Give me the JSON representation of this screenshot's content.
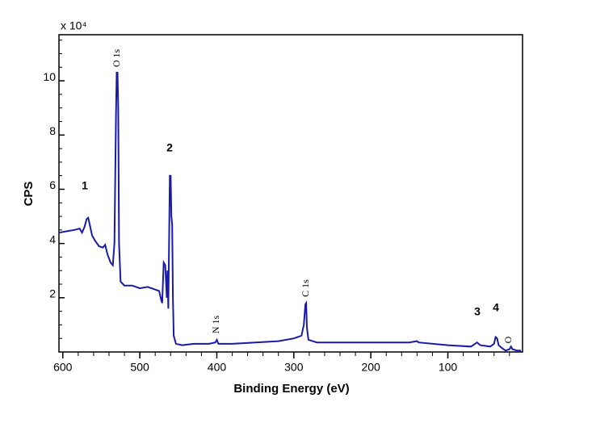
{
  "chart_data": {
    "type": "line",
    "x_label": "Binding Energy (eV)",
    "y_label": "CPS",
    "y_multiplier": "x 10⁴",
    "xlim": [
      605,
      3
    ],
    "ylim": [
      0,
      11.7
    ],
    "xticks": [
      600,
      500,
      400,
      300,
      200,
      100
    ],
    "yticks": [
      2,
      4,
      6,
      8,
      10
    ],
    "color": "#1a1aa8",
    "x": [
      605,
      595,
      585,
      578,
      575,
      572,
      569,
      567,
      565,
      562,
      558,
      553,
      548,
      545,
      542,
      538,
      535,
      533,
      531,
      530,
      529,
      528,
      527,
      525,
      520,
      510,
      500,
      490,
      480,
      475,
      472,
      471,
      469,
      467,
      465,
      464,
      463,
      461,
      460,
      459,
      458,
      457,
      456,
      453,
      445,
      430,
      410,
      402,
      400,
      398,
      380,
      350,
      320,
      300,
      290,
      287,
      285,
      284,
      283,
      281,
      270,
      250,
      200,
      150,
      140,
      138,
      100,
      70,
      62,
      58,
      45,
      40,
      38,
      36,
      34,
      30,
      25,
      20,
      18,
      16,
      10,
      5
    ],
    "values": [
      4.4,
      4.45,
      4.5,
      4.55,
      4.4,
      4.6,
      4.9,
      4.95,
      4.7,
      4.3,
      4.1,
      3.9,
      3.85,
      3.95,
      3.6,
      3.3,
      3.2,
      4.0,
      8.7,
      10.3,
      10.3,
      9.0,
      4.0,
      2.6,
      2.45,
      2.45,
      2.35,
      2.4,
      2.3,
      2.25,
      1.9,
      1.8,
      3.3,
      3.2,
      2.0,
      3.0,
      1.6,
      6.5,
      6.5,
      5.0,
      4.7,
      2.0,
      0.6,
      0.3,
      0.25,
      0.3,
      0.3,
      0.35,
      0.45,
      0.3,
      0.3,
      0.35,
      0.4,
      0.5,
      0.6,
      1.0,
      1.75,
      1.8,
      0.9,
      0.45,
      0.35,
      0.35,
      0.35,
      0.35,
      0.4,
      0.35,
      0.25,
      0.2,
      0.35,
      0.25,
      0.2,
      0.3,
      0.55,
      0.5,
      0.25,
      0.15,
      0.05,
      0.1,
      0.2,
      0.1,
      0.05,
      0.05
    ],
    "annotations": [
      "O 1s",
      "N 1s",
      "C 1s",
      "O",
      "1",
      "2",
      "3",
      "4"
    ]
  }
}
